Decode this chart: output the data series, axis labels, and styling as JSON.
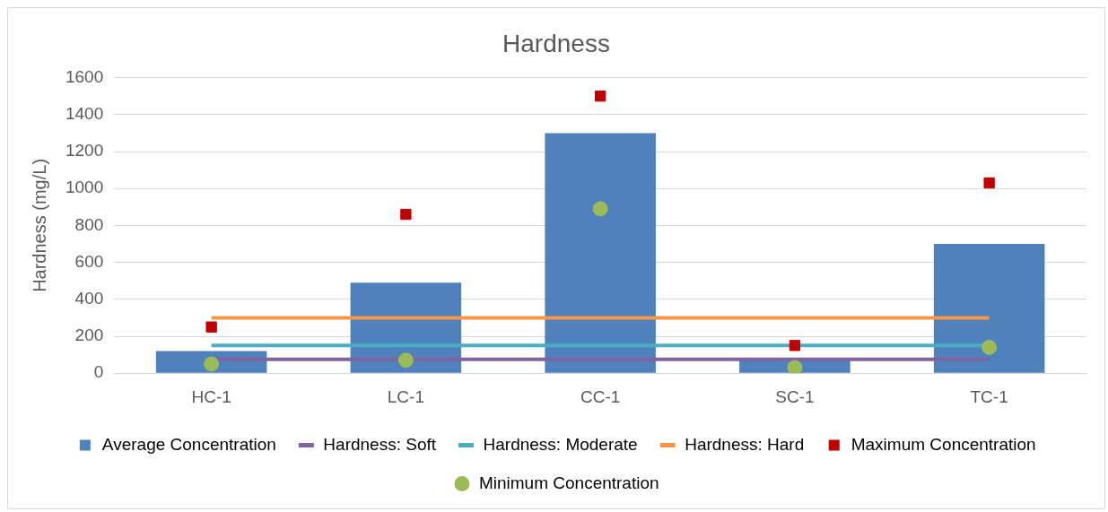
{
  "chart_data": {
    "type": "bar",
    "title": "Hardness",
    "ylabel": "Hardness (mg/L)",
    "categories": [
      "HC-1",
      "LC-1",
      "CC-1",
      "SC-1",
      "TC-1"
    ],
    "ylim": [
      0,
      1600
    ],
    "yticks": [
      0,
      200,
      400,
      600,
      800,
      1000,
      1200,
      1400,
      1600
    ],
    "grid": "y",
    "legend": "bottom",
    "series": [
      {
        "name": "Average Concentration",
        "color": "#4f81bd",
        "values": [
          120,
          490,
          1300,
          80,
          700
        ]
      },
      {
        "name": "Hardness: Soft",
        "type": "line",
        "color": "#8064a2",
        "marker": "none",
        "values": [
          75,
          75,
          75,
          75,
          75
        ]
      },
      {
        "name": "Hardness: Moderate",
        "type": "line",
        "color": "#4bacc6",
        "marker": "none",
        "values": [
          150,
          150,
          150,
          150,
          150
        ]
      },
      {
        "name": "Hardness: Hard",
        "type": "line",
        "color": "#f79646",
        "marker": "none",
        "values": [
          300,
          300,
          300,
          300,
          300
        ]
      },
      {
        "name": "Maximum Concentration",
        "type": "scatter",
        "color": "#c00000",
        "marker": "square",
        "x": [
          "HC-1",
          "LC-1",
          "CC-1",
          "SC-1",
          "TC-1"
        ],
        "values": [
          250,
          860,
          1500,
          150,
          1030
        ]
      },
      {
        "name": "Minimum Concentration",
        "type": "scatter",
        "color": "#9bbb59",
        "marker": "circle",
        "x": [
          "HC-1",
          "LC-1",
          "CC-1",
          "SC-1",
          "TC-1"
        ],
        "values": [
          50,
          70,
          890,
          30,
          140
        ]
      }
    ]
  }
}
